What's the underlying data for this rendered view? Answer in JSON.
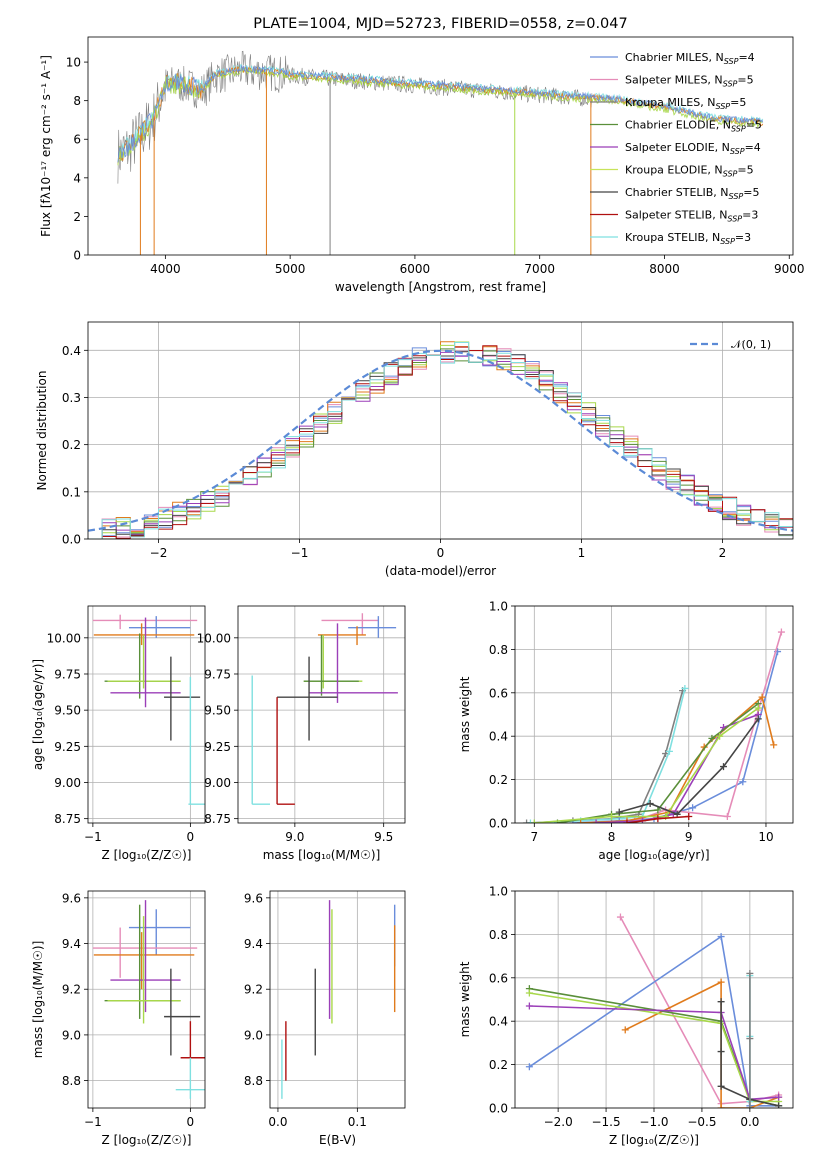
{
  "colors": {
    "Chabrier MILES": "#6a8ddb",
    "Salpeter MILES": "#e58cb8",
    "Kroupa MILES": "#808080",
    "Chabrier ELODIE": "#5a8f3a",
    "Salpeter ELODIE": "#9b3fb8",
    "Kroupa ELODIE": "#c8e35a",
    "Chabrier STELIB": "#454545",
    "Salpeter STELIB": "#b01010",
    "Kroupa STELIB": "#7fe0e0",
    "orange": "#e07b1c",
    "lime": "#a8d84a",
    "gaussian": "#5b8ad6"
  },
  "chart_data": [
    {
      "id": "spectrum",
      "type": "line",
      "title": "PLATE=1004, MJD=52723, FIBERID=0558, z=0.047",
      "xlabel": "wavelength [Angstrom, rest frame]",
      "ylabel": "Flux [fλ10⁻¹⁷ erg cm⁻² s⁻¹ A⁻¹]",
      "xlim": [
        3380,
        9030
      ],
      "ylim": [
        0,
        11.3
      ],
      "xticks": [
        "4000",
        "5000",
        "6000",
        "7000",
        "8000",
        "9000"
      ],
      "xtick_values": [
        4000,
        5000,
        6000,
        7000,
        8000,
        9000
      ],
      "yticks": [
        "0",
        "2",
        "4",
        "6",
        "8",
        "10"
      ],
      "ytick_values": [
        0,
        2,
        4,
        6,
        8,
        10
      ],
      "grid": false,
      "legend_placement": "top-right",
      "legend": [
        {
          "name": "Chabrier MILES, N",
          "sub": "SSP",
          "suffix": "=4"
        },
        {
          "name": "Salpeter MILES, N",
          "sub": "SSP",
          "suffix": "=5"
        },
        {
          "name": "Kroupa MILES, N",
          "sub": "SSP",
          "suffix": "=5"
        },
        {
          "name": "Chabrier ELODIE, N",
          "sub": "SSP",
          "suffix": "=5"
        },
        {
          "name": "Salpeter ELODIE, N",
          "sub": "SSP",
          "suffix": "=4"
        },
        {
          "name": "Kroupa ELODIE, N",
          "sub": "SSP",
          "suffix": "=5"
        },
        {
          "name": "Chabrier STELIB, N",
          "sub": "SSP",
          "suffix": "=5"
        },
        {
          "name": "Salpeter STELIB, N",
          "sub": "SSP",
          "suffix": "=3"
        },
        {
          "name": "Kroupa STELIB, N",
          "sub": "SSP",
          "suffix": "=3"
        }
      ],
      "spectrum_nodes": {
        "wavelength": [
          3620,
          3700,
          3800,
          3900,
          4000,
          4100,
          4200,
          4300,
          4400,
          4500,
          4600,
          4700,
          4800,
          4900,
          5000,
          5200,
          5400,
          5600,
          5800,
          6000,
          6200,
          6400,
          6600,
          6800,
          7000,
          7200,
          7400,
          7600,
          7800,
          8000,
          8200,
          8400,
          8600,
          8800
        ],
        "flux": [
          5.2,
          5.5,
          6.2,
          7.0,
          8.8,
          8.9,
          8.7,
          8.5,
          9.3,
          9.4,
          9.6,
          9.5,
          9.5,
          9.4,
          9.3,
          9.2,
          9.1,
          9.0,
          8.9,
          8.8,
          8.7,
          8.6,
          8.5,
          8.4,
          8.3,
          8.2,
          8.1,
          8.0,
          7.8,
          7.6,
          7.3,
          7.0,
          6.9,
          6.8
        ]
      },
      "dropouts": [
        {
          "wavelength": 3800,
          "flux": 0.0
        },
        {
          "wavelength": 3910,
          "flux": 0.0
        },
        {
          "wavelength": 4810,
          "flux": 0.0
        },
        {
          "wavelength": 5320,
          "flux": 0.0
        },
        {
          "wavelength": 6800,
          "flux": 0.0
        },
        {
          "wavelength": 7410,
          "flux": 0.0
        }
      ]
    },
    {
      "id": "residuals",
      "type": "histogram",
      "xlabel": "(data-model)/error",
      "ylabel": "Normed distribution",
      "xlim": [
        -2.5,
        2.5
      ],
      "ylim": [
        0,
        0.46
      ],
      "xticks": [
        "−2",
        "−1",
        "0",
        "1",
        "2"
      ],
      "xtick_values": [
        -2,
        -1,
        0,
        1,
        2
      ],
      "yticks": [
        "0.0",
        "0.1",
        "0.2",
        "0.3",
        "0.4"
      ],
      "ytick_values": [
        0,
        0.1,
        0.2,
        0.3,
        0.4
      ],
      "grid": true,
      "legend_placement": "top-right",
      "gaussian_label": "𝒩(0, 1)",
      "bin_width": 0.1,
      "base_series": "Gaussian N(0,1) density per bin with ±0.03 scatter across the nine fits"
    },
    {
      "id": "age_vs_Z",
      "type": "errorbar",
      "xlabel": "Z [log₁₀(Z/Z☉)]",
      "ylabel": "age  [log₁₀(age/yr)]",
      "xlim": [
        -1.05,
        0.15
      ],
      "ylim": [
        8.72,
        10.22
      ],
      "xticks": [
        "−1",
        "0"
      ],
      "xtick_values": [
        -1,
        0
      ],
      "yticks": [
        "8.75",
        "9.00",
        "9.25",
        "9.50",
        "9.75",
        "10.00"
      ],
      "ytick_values": [
        8.75,
        9.0,
        9.25,
        9.5,
        9.75,
        10.0
      ],
      "grid": true,
      "points": [
        {
          "c": "Salpeter MILES",
          "x": -0.72,
          "y": 10.12,
          "xlo": -1.0,
          "xhi": 0.07,
          "ylo": 10.06,
          "yhi": 10.16
        },
        {
          "c": "Chabrier MILES",
          "x": -0.35,
          "y": 10.07,
          "xlo": -0.63,
          "xhi": 0.0,
          "ylo": 10.0,
          "yhi": 10.15
        },
        {
          "c": "orange",
          "x": -0.5,
          "y": 10.02,
          "xlo": -0.99,
          "xhi": 0.04,
          "ylo": 9.95,
          "yhi": 10.1
        },
        {
          "c": "Chabrier ELODIE",
          "x": -0.52,
          "y": 9.7,
          "xlo": -0.88,
          "xhi": -0.1,
          "ylo": 9.58,
          "yhi": 10.03
        },
        {
          "c": "lime",
          "x": -0.48,
          "y": 9.7,
          "xlo": -0.85,
          "xhi": -0.1,
          "ylo": 9.65,
          "yhi": 10.02
        },
        {
          "c": "Salpeter ELODIE",
          "x": -0.46,
          "y": 9.62,
          "xlo": -0.82,
          "xhi": -0.1,
          "ylo": 9.52,
          "yhi": 10.14
        },
        {
          "c": "Chabrier STELIB",
          "x": -0.2,
          "y": 9.59,
          "xlo": -0.27,
          "xhi": 0.1,
          "ylo": 9.29,
          "yhi": 9.87
        },
        {
          "c": "Kroupa STELIB",
          "x": 0.0,
          "y": 8.85,
          "xlo": -0.02,
          "xhi": 0.15,
          "ylo": 8.85,
          "yhi": 9.73
        }
      ]
    },
    {
      "id": "age_vs_mass",
      "type": "errorbar",
      "xlabel": "mass [log₁₀(M/M☉)]",
      "ylabel": "",
      "xlim": [
        8.68,
        9.62
      ],
      "ylim": [
        8.72,
        10.22
      ],
      "xticks": [
        "9.0",
        "9.5"
      ],
      "xtick_values": [
        9.0,
        9.5
      ],
      "yticks": [
        "8.75",
        "9.00",
        "9.25",
        "9.50",
        "9.75",
        "10.00"
      ],
      "ytick_values": [
        8.75,
        9.0,
        9.25,
        9.5,
        9.75,
        10.0
      ],
      "grid": true,
      "points": [
        {
          "c": "Salpeter MILES",
          "x": 9.38,
          "y": 10.12,
          "xlo": 9.15,
          "xhi": 9.47,
          "ylo": 10.02,
          "yhi": 10.17
        },
        {
          "c": "Chabrier MILES",
          "x": 9.47,
          "y": 10.07,
          "xlo": 9.3,
          "xhi": 9.57,
          "ylo": 10.0,
          "yhi": 10.15
        },
        {
          "c": "orange",
          "x": 9.35,
          "y": 10.02,
          "xlo": 9.13,
          "xhi": 9.4,
          "ylo": 9.95,
          "yhi": 10.08
        },
        {
          "c": "lime",
          "x": 9.16,
          "y": 9.7,
          "xlo": 9.05,
          "xhi": 9.38,
          "ylo": 9.65,
          "yhi": 10.02
        },
        {
          "c": "Chabrier ELODIE",
          "x": 9.15,
          "y": 9.7,
          "xlo": 9.05,
          "xhi": 9.36,
          "ylo": 9.6,
          "yhi": 10.02
        },
        {
          "c": "Salpeter ELODIE",
          "x": 9.24,
          "y": 9.62,
          "xlo": 9.08,
          "xhi": 9.58,
          "ylo": 9.55,
          "yhi": 10.1
        },
        {
          "c": "Chabrier STELIB",
          "x": 9.08,
          "y": 9.59,
          "xlo": 8.9,
          "xhi": 9.24,
          "ylo": 9.29,
          "yhi": 9.87
        },
        {
          "c": "Salpeter STELIB",
          "x": 8.9,
          "y": 8.85,
          "xlo": 8.9,
          "xhi": 9.0,
          "ylo": 8.85,
          "yhi": 9.59
        },
        {
          "c": "Kroupa STELIB",
          "x": 8.76,
          "y": 8.85,
          "xlo": 8.76,
          "xhi": 8.86,
          "ylo": 8.85,
          "yhi": 9.74
        }
      ]
    },
    {
      "id": "mass_weight_vs_age",
      "type": "line",
      "xlabel": "age  [log₁₀(age/yr)]",
      "ylabel": "mass weight",
      "xlim": [
        6.75,
        10.35
      ],
      "ylim": [
        0,
        1.0
      ],
      "xticks": [
        "7",
        "8",
        "9",
        "10"
      ],
      "xtick_values": [
        7,
        8,
        9,
        10
      ],
      "yticks": [
        "0.0",
        "0.2",
        "0.4",
        "0.6",
        "0.8",
        "1.0"
      ],
      "ytick_values": [
        0,
        0.2,
        0.4,
        0.6,
        0.8,
        1.0
      ],
      "grid": true,
      "series": [
        {
          "c": "Kroupa MILES",
          "x": [
            6.9,
            7.5,
            8.0,
            8.35,
            8.7,
            8.92
          ],
          "y": [
            0.0,
            0.01,
            0.02,
            0.04,
            0.32,
            0.61
          ]
        },
        {
          "c": "Kroupa STELIB",
          "x": [
            6.95,
            7.6,
            8.1,
            8.4,
            8.75,
            8.95
          ],
          "y": [
            0.0,
            0.01,
            0.02,
            0.03,
            0.33,
            0.62
          ]
        },
        {
          "c": "Chabrier MILES",
          "x": [
            7.5,
            8.1,
            8.55,
            9.05,
            9.7,
            10.15
          ],
          "y": [
            0.0,
            0.01,
            0.02,
            0.07,
            0.19,
            0.79
          ]
        },
        {
          "c": "Salpeter MILES",
          "x": [
            7.8,
            8.3,
            8.7,
            9.5,
            9.9,
            10.2
          ],
          "y": [
            0.0,
            0.01,
            0.06,
            0.03,
            0.52,
            0.88
          ]
        },
        {
          "c": "orange",
          "x": [
            7.6,
            8.2,
            8.75,
            9.2,
            9.95,
            10.1
          ],
          "y": [
            0.0,
            0.01,
            0.05,
            0.35,
            0.58,
            0.36
          ]
        },
        {
          "c": "Salpeter ELODIE",
          "x": [
            7.8,
            8.4,
            8.8,
            9.45,
            9.9
          ],
          "y": [
            0.0,
            0.01,
            0.04,
            0.44,
            0.5
          ]
        },
        {
          "c": "Chabrier ELODIE",
          "x": [
            7.3,
            8.0,
            8.6,
            9.3,
            9.9
          ],
          "y": [
            0.0,
            0.04,
            0.06,
            0.39,
            0.55
          ]
        },
        {
          "c": "lime",
          "x": [
            7.0,
            8.0,
            8.7,
            9.4,
            9.9
          ],
          "y": [
            0.0,
            0.03,
            0.03,
            0.4,
            0.53
          ]
        },
        {
          "c": "Chabrier STELIB",
          "x": [
            8.1,
            8.5,
            8.85,
            9.45,
            9.9
          ],
          "y": [
            0.05,
            0.09,
            0.04,
            0.26,
            0.48
          ]
        },
        {
          "c": "Salpeter STELIB",
          "x": [
            8.2,
            8.6,
            9.0
          ],
          "y": [
            0.0,
            0.02,
            0.03
          ]
        }
      ]
    },
    {
      "id": "mass_vs_Z",
      "type": "errorbar",
      "xlabel": "Z [log₁₀(Z/Z☉)]",
      "ylabel": "mass [log₁₀(M/M☉)]",
      "xlim": [
        -1.05,
        0.15
      ],
      "ylim": [
        8.68,
        9.63
      ],
      "xticks": [
        "−1",
        "0"
      ],
      "xtick_values": [
        -1,
        0
      ],
      "yticks": [
        "8.8",
        "9.0",
        "9.2",
        "9.4",
        "9.6"
      ],
      "ytick_values": [
        8.8,
        9.0,
        9.2,
        9.4,
        9.6
      ],
      "grid": true,
      "points": [
        {
          "c": "Chabrier MILES",
          "x": -0.35,
          "y": 9.47,
          "xlo": -0.63,
          "xhi": 0.0,
          "ylo": 9.35,
          "yhi": 9.55
        },
        {
          "c": "Salpeter MILES",
          "x": -0.72,
          "y": 9.38,
          "xlo": -1.0,
          "xhi": 0.07,
          "ylo": 9.25,
          "yhi": 9.47
        },
        {
          "c": "orange",
          "x": -0.5,
          "y": 9.35,
          "xlo": -0.99,
          "xhi": 0.04,
          "ylo": 9.2,
          "yhi": 9.45
        },
        {
          "c": "Salpeter ELODIE",
          "x": -0.46,
          "y": 9.24,
          "xlo": -0.82,
          "xhi": -0.1,
          "ylo": 9.1,
          "yhi": 9.59
        },
        {
          "c": "Chabrier ELODIE",
          "x": -0.52,
          "y": 9.15,
          "xlo": -0.88,
          "xhi": -0.1,
          "ylo": 9.07,
          "yhi": 9.57
        },
        {
          "c": "lime",
          "x": -0.48,
          "y": 9.15,
          "xlo": -0.85,
          "xhi": -0.1,
          "ylo": 9.05,
          "yhi": 9.52
        },
        {
          "c": "Chabrier STELIB",
          "x": -0.2,
          "y": 9.08,
          "xlo": -0.27,
          "xhi": 0.1,
          "ylo": 8.91,
          "yhi": 9.29
        },
        {
          "c": "Salpeter STELIB",
          "x": 0.0,
          "y": 8.9,
          "xlo": -0.1,
          "xhi": 0.15,
          "ylo": 8.9,
          "yhi": 9.06
        },
        {
          "c": "Kroupa STELIB",
          "x": 0.0,
          "y": 8.76,
          "xlo": -0.15,
          "xhi": 0.15,
          "ylo": 8.72,
          "yhi": 8.9
        }
      ]
    },
    {
      "id": "mass_vs_EBV",
      "type": "errorbar",
      "xlabel": "E(B-V)",
      "ylabel": "",
      "xlim": [
        -0.01,
        0.16
      ],
      "ylim": [
        8.68,
        9.63
      ],
      "xticks": [
        "0.0",
        "0.1"
      ],
      "xtick_values": [
        0.0,
        0.1
      ],
      "yticks": [
        "8.8",
        "9.0",
        "9.2",
        "9.4",
        "9.6"
      ],
      "ytick_values": [
        8.8,
        9.0,
        9.2,
        9.4,
        9.6
      ],
      "grid": true,
      "points": [
        {
          "c": "Chabrier MILES",
          "x": 0.147,
          "y": 9.47,
          "ylo": 9.3,
          "yhi": 9.57
        },
        {
          "c": "orange",
          "x": 0.147,
          "y": 9.35,
          "ylo": 9.1,
          "yhi": 9.48
        },
        {
          "c": "Salpeter ELODIE",
          "x": 0.065,
          "y": 9.24,
          "ylo": 9.07,
          "yhi": 9.59
        },
        {
          "c": "lime",
          "x": 0.068,
          "y": 9.15,
          "ylo": 9.05,
          "yhi": 9.55
        },
        {
          "c": "Chabrier STELIB",
          "x": 0.047,
          "y": 9.08,
          "ylo": 8.91,
          "yhi": 9.29
        },
        {
          "c": "Salpeter STELIB",
          "x": 0.01,
          "y": 8.9,
          "ylo": 8.8,
          "yhi": 9.06
        },
        {
          "c": "Kroupa STELIB",
          "x": 0.005,
          "y": 8.76,
          "ylo": 8.72,
          "yhi": 8.98
        }
      ]
    },
    {
      "id": "mass_weight_vs_Z",
      "type": "line",
      "xlabel": "Z [log₁₀(Z/Z☉)]",
      "ylabel": "mass weight",
      "xlim": [
        -2.45,
        0.45
      ],
      "ylim": [
        0,
        1.0
      ],
      "xticks": [
        "−2.0",
        "−1.5",
        "−1.0",
        "−0.5",
        "0.0"
      ],
      "xtick_values": [
        -2.0,
        -1.5,
        -1.0,
        -0.5,
        0.0
      ],
      "yticks": [
        "0.0",
        "0.2",
        "0.4",
        "0.6",
        "0.8",
        "1.0"
      ],
      "ytick_values": [
        0,
        0.2,
        0.4,
        0.6,
        0.8,
        1.0
      ],
      "grid": true,
      "series": [
        {
          "c": "Salpeter MILES",
          "x": [
            -1.35,
            -0.3,
            0.0,
            0.3
          ],
          "y": [
            0.88,
            0.02,
            0.03,
            0.06
          ]
        },
        {
          "c": "Chabrier MILES",
          "x": [
            -2.3,
            -0.3,
            0.0,
            0.3
          ],
          "y": [
            0.19,
            0.79,
            0.01,
            0.01
          ]
        },
        {
          "c": "orange",
          "x": [
            -1.3,
            -0.3,
            -0.3,
            0.0,
            0.3
          ],
          "y": [
            0.36,
            0.58,
            0.0,
            0.0,
            0.05
          ]
        },
        {
          "c": "Chabrier ELODIE",
          "x": [
            -2.3,
            -0.3,
            0.0,
            0.3
          ],
          "y": [
            0.55,
            0.4,
            0.04,
            0.01
          ]
        },
        {
          "c": "lime",
          "x": [
            -2.3,
            -0.3,
            0.0,
            0.3
          ],
          "y": [
            0.53,
            0.39,
            0.03,
            0.03
          ]
        },
        {
          "c": "Salpeter ELODIE",
          "x": [
            -2.3,
            -0.3,
            0.0,
            0.3
          ],
          "y": [
            0.47,
            0.44,
            0.04,
            0.05
          ]
        },
        {
          "c": "Chabrier STELIB",
          "x": [
            -0.3,
            -0.3,
            -0.3,
            0.0,
            0.3
          ],
          "y": [
            0.49,
            0.26,
            0.1,
            0.04,
            0.01
          ]
        },
        {
          "c": "Kroupa STELIB",
          "x": [
            0.0,
            0.0,
            0.0,
            0.0
          ],
          "y": [
            0.61,
            0.33,
            0.03,
            0.0
          ]
        },
        {
          "c": "Kroupa MILES",
          "x": [
            0.0,
            0.0,
            0.0
          ],
          "y": [
            0.62,
            0.32,
            0.0
          ]
        }
      ]
    }
  ]
}
